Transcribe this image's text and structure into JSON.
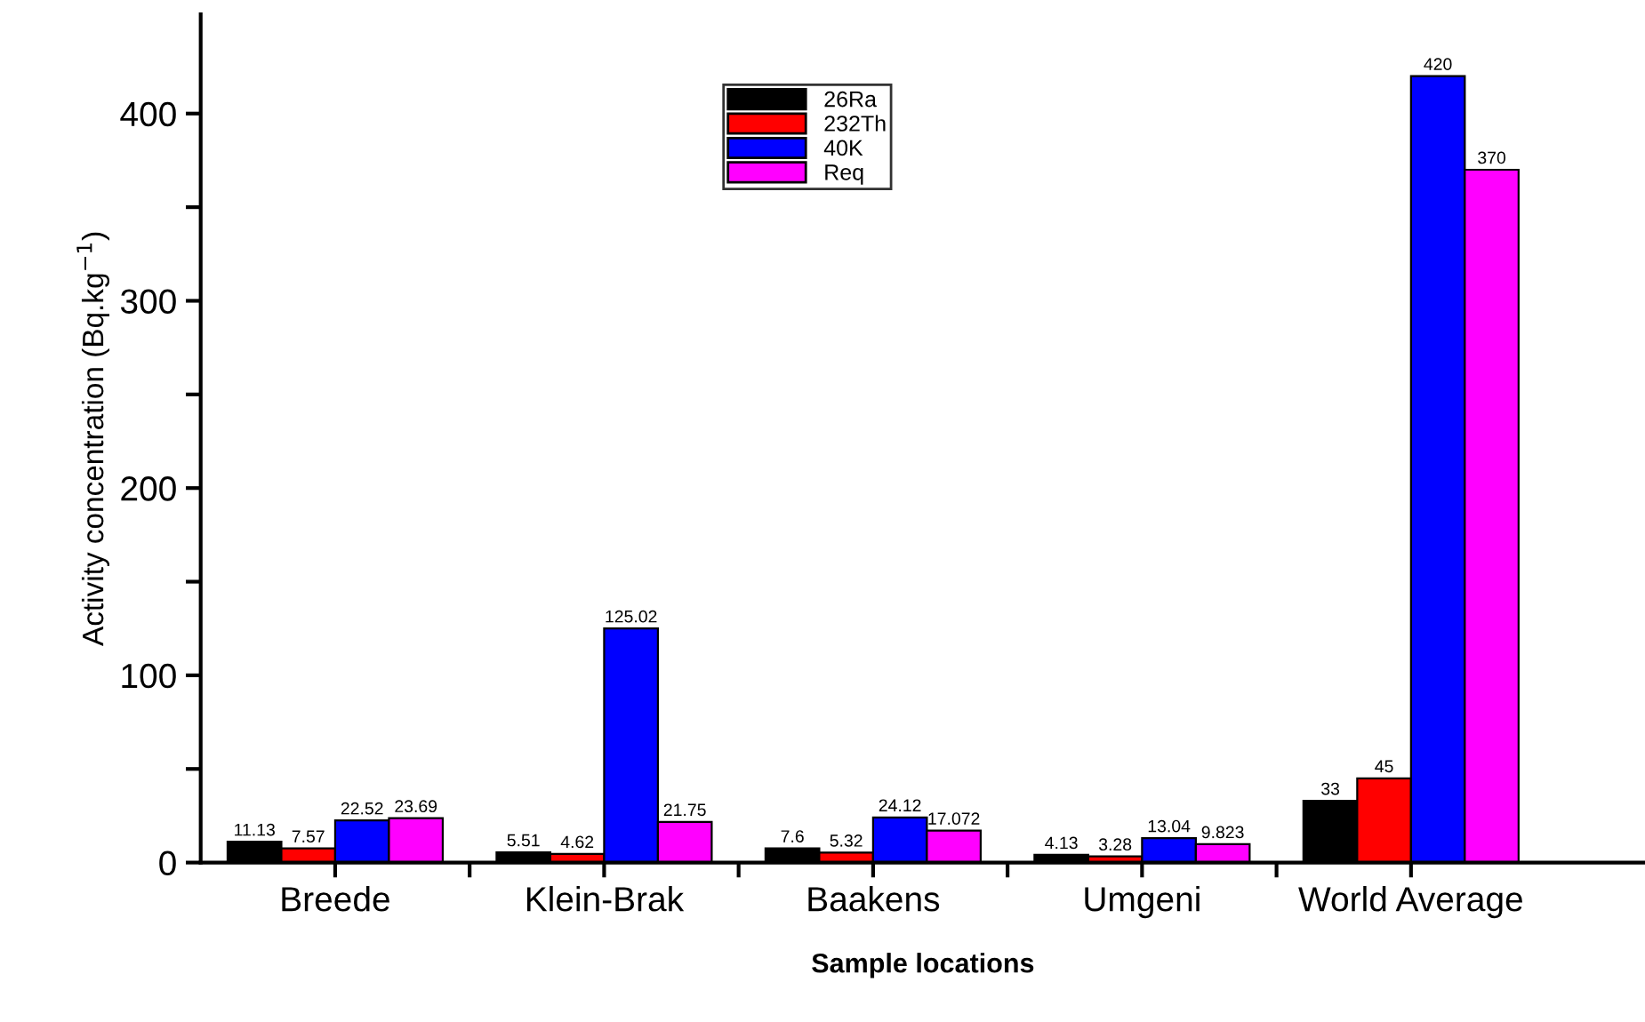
{
  "chart_data": {
    "type": "bar",
    "xlabel": "Sample locations",
    "ylabel": "Activity concentration (Bq.kg$^{−1}$)",
    "categories": [
      "Breede",
      "Klein-Brak",
      "Baakens",
      "Umgeni",
      "World Average"
    ],
    "series": [
      {
        "name": "26Ra",
        "color": "#000000",
        "values": [
          11.13,
          5.51,
          7.6,
          4.13,
          33
        ]
      },
      {
        "name": "232Th",
        "color": "#ff0000",
        "values": [
          7.57,
          4.62,
          5.32,
          3.28,
          45
        ]
      },
      {
        "name": "40K",
        "color": "#0000ff",
        "values": [
          22.52,
          125.02,
          24.12,
          13.04,
          420
        ]
      },
      {
        "name": "Req",
        "color": "#ff00ff",
        "values": [
          23.69,
          21.75,
          17.072,
          9.823,
          370
        ]
      }
    ],
    "ylim": [
      0,
      453
    ],
    "yticks": [
      0,
      {
        "value": 50,
        "label": null
      },
      100,
      {
        "value": 150,
        "label": null
      },
      200,
      {
        "value": 250,
        "label": null
      },
      300,
      {
        "value": 350,
        "label": null
      },
      400
    ],
    "data_labels": true,
    "legend": "top",
    "grid": false
  }
}
